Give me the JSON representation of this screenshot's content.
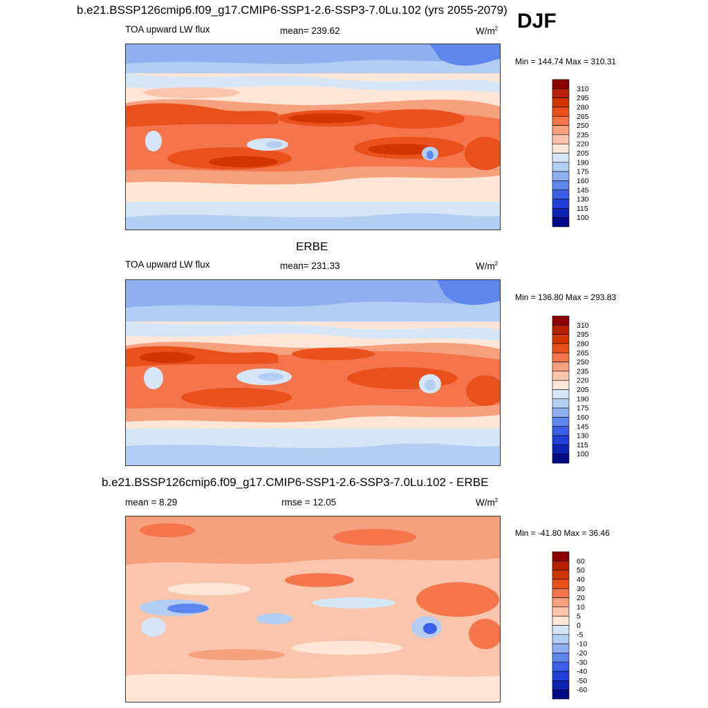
{
  "figure": {
    "title": "b.e21.BSSP126cmip6.f09_g17.CMIP6-SSP1-2.6-SSP3-7.0Lu.102 (yrs 2055-2079)",
    "season": "DJF"
  },
  "panels": [
    {
      "id": "model",
      "title": "",
      "variable": "TOA upward LW flux",
      "stat": "mean= 239.62",
      "unit": "W/m",
      "unit_exp": "2",
      "minmax": "Min = 144.74 Max = 310.31",
      "colorbar_levels": [
        "310",
        "295",
        "280",
        "265",
        "250",
        "235",
        "220",
        "205",
        "190",
        "175",
        "160",
        "145",
        "130",
        "115",
        "100"
      ]
    },
    {
      "id": "obs",
      "title": "ERBE",
      "variable": "TOA upward LW flux",
      "stat": "mean= 231.33",
      "unit": "W/m",
      "unit_exp": "2",
      "minmax": "Min = 136.80 Max = 293.83",
      "colorbar_levels": [
        "310",
        "295",
        "280",
        "265",
        "250",
        "235",
        "220",
        "205",
        "190",
        "175",
        "160",
        "145",
        "130",
        "115",
        "100"
      ]
    },
    {
      "id": "diff",
      "title": "b.e21.BSSP126cmip6.f09_g17.CMIP6-SSP1-2.6-SSP3-7.0Lu.102 - ERBE",
      "variable": "mean =   8.29",
      "stat": "rmse =  12.05",
      "unit": "W/m",
      "unit_exp": "2",
      "minmax": "Min = -41.80 Max =  36.46",
      "colorbar_levels": [
        "60",
        "50",
        "40",
        "30",
        "20",
        "10",
        "5",
        "0",
        "-5",
        "-10",
        "-20",
        "-30",
        "-40",
        "-50",
        "-60"
      ]
    }
  ],
  "chart_data": [
    {
      "type": "heatmap",
      "title": "b.e21.BSSP126cmip6.f09_g17.CMIP6-SSP1-2.6-SSP3-7.0Lu.102 (yrs 2055-2079)",
      "subtitle": "TOA upward LW flux",
      "mean": 239.62,
      "min": 144.74,
      "max": 310.31,
      "levels": [
        100,
        115,
        130,
        145,
        160,
        175,
        190,
        205,
        220,
        235,
        250,
        265,
        280,
        295,
        310
      ]
    },
    {
      "type": "heatmap",
      "title": "ERBE",
      "subtitle": "TOA upward LW flux",
      "mean": 231.33,
      "min": 136.8,
      "max": 293.83,
      "levels": [
        100,
        115,
        130,
        145,
        160,
        175,
        190,
        205,
        220,
        235,
        250,
        265,
        280,
        295,
        310
      ]
    },
    {
      "type": "heatmap",
      "title": "b.e21.BSSP126cmip6.f09_g17.CMIP6-SSP1-2.6-SSP3-7.0Lu.102 - ERBE",
      "mean": 8.29,
      "rmse": 12.05,
      "min": -41.8,
      "max": 36.46,
      "levels": [
        -60,
        -50,
        -40,
        -30,
        -20,
        -10,
        -5,
        0,
        5,
        10,
        20,
        30,
        40,
        50,
        60
      ]
    }
  ],
  "colors": {
    "abs_scale": [
      "#8b0000",
      "#b42000",
      "#d23600",
      "#e8501c",
      "#f4744c",
      "#f6a07e",
      "#f9c5ad",
      "#fde6d8",
      "#d7e6f7",
      "#b4cdf2",
      "#8fb0ee",
      "#5f86ec",
      "#3a5ee6",
      "#1f3fd8",
      "#0d24b4",
      "#000c87"
    ],
    "diff_scale": [
      "#8b0000",
      "#b42000",
      "#d23600",
      "#e8501c",
      "#f4744c",
      "#f6a07e",
      "#f9c5ad",
      "#fde6d8",
      "#d7e6f7",
      "#b4cdf2",
      "#8fb0ee",
      "#5f86ec",
      "#3a5ee6",
      "#1f3fd8",
      "#0d24b4",
      "#000c87"
    ]
  }
}
